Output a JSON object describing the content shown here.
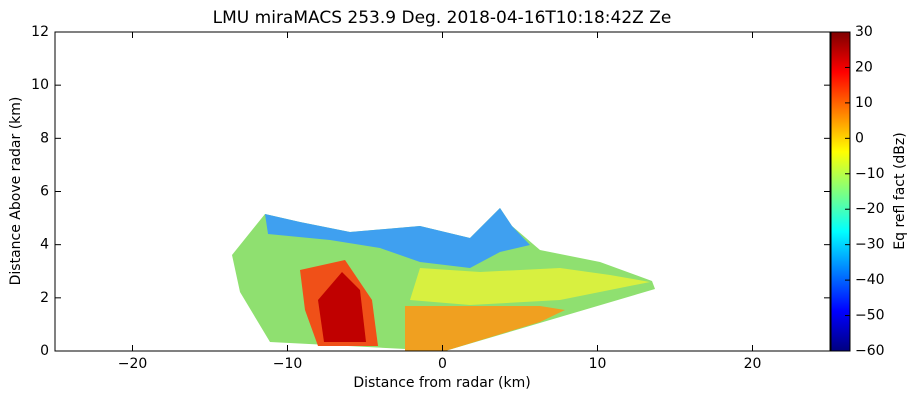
{
  "chart_data": {
    "type": "heatmap",
    "title": "LMU miraMACS 253.9 Deg. 2018-04-16T10:18:42Z  Ze",
    "x_label": "Distance from radar (km)",
    "y_label": "Distance Above radar  (km)",
    "xlim": [
      -25,
      25
    ],
    "xticks": [
      {
        "value": -20,
        "label": "−20"
      },
      {
        "value": -10,
        "label": "−10"
      },
      0,
      10,
      20
    ],
    "ylim": [
      0,
      12
    ],
    "yticks": [
      0,
      2,
      4,
      6,
      8,
      10,
      12
    ],
    "colormap": "jet",
    "colorbar_label": "Eq refl fact (dBz)",
    "clim": [
      -60,
      30
    ],
    "cticks": [
      {
        "value": -60,
        "label": "−60"
      },
      {
        "value": -50,
        "label": "−50"
      },
      {
        "value": -40,
        "label": "−40"
      },
      {
        "value": -30,
        "label": "−30"
      },
      {
        "value": -20,
        "label": "−20"
      },
      {
        "value": -10,
        "label": "−10"
      },
      0,
      10,
      20,
      30
    ]
  }
}
